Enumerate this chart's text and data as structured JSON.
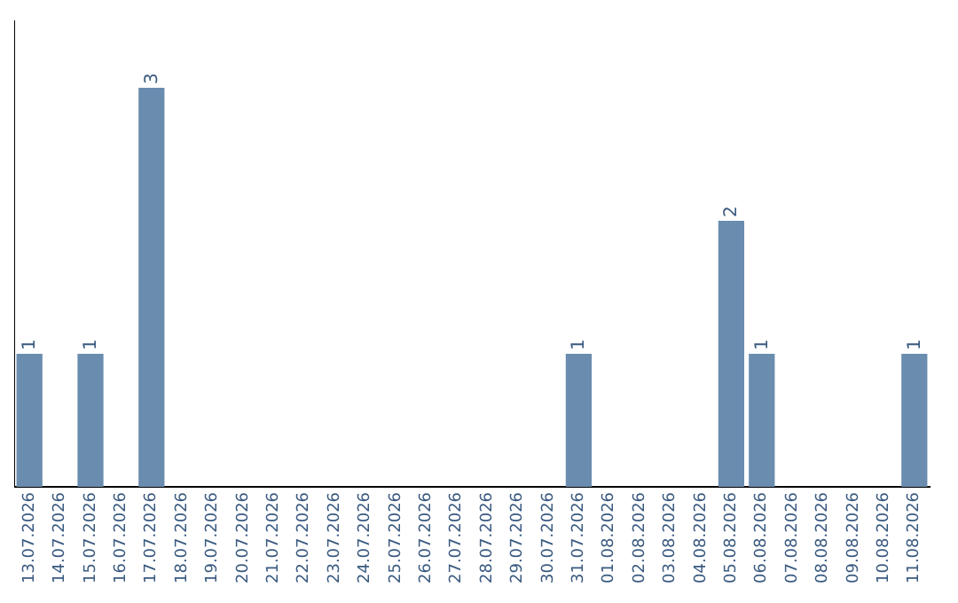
{
  "chart_data": {
    "type": "bar",
    "categories": [
      "13.07.2026",
      "14.07.2026",
      "15.07.2026",
      "16.07.2026",
      "17.07.2026",
      "18.07.2026",
      "19.07.2026",
      "20.07.2026",
      "21.07.2026",
      "22.07.2026",
      "23.07.2026",
      "24.07.2026",
      "25.07.2026",
      "26.07.2026",
      "27.07.2026",
      "28.07.2026",
      "29.07.2026",
      "30.07.2026",
      "31.07.2026",
      "01.08.2026",
      "02.08.2026",
      "03.08.2026",
      "04.08.2026",
      "05.08.2026",
      "06.08.2026",
      "07.08.2026",
      "08.08.2026",
      "09.08.2026",
      "10.08.2026",
      "11.08.2026"
    ],
    "values": [
      1,
      0,
      1,
      0,
      3,
      0,
      0,
      0,
      0,
      0,
      0,
      0,
      0,
      0,
      0,
      0,
      0,
      0,
      1,
      0,
      0,
      0,
      0,
      2,
      1,
      0,
      0,
      0,
      0,
      1
    ],
    "value_labels": [
      "1",
      null,
      "1",
      null,
      "3",
      null,
      null,
      null,
      null,
      null,
      null,
      null,
      null,
      null,
      null,
      null,
      null,
      null,
      "1",
      null,
      null,
      null,
      null,
      "2",
      "1",
      null,
      null,
      null,
      null,
      "1"
    ],
    "color": "#6a8caf",
    "grid": false,
    "legend": false
  }
}
